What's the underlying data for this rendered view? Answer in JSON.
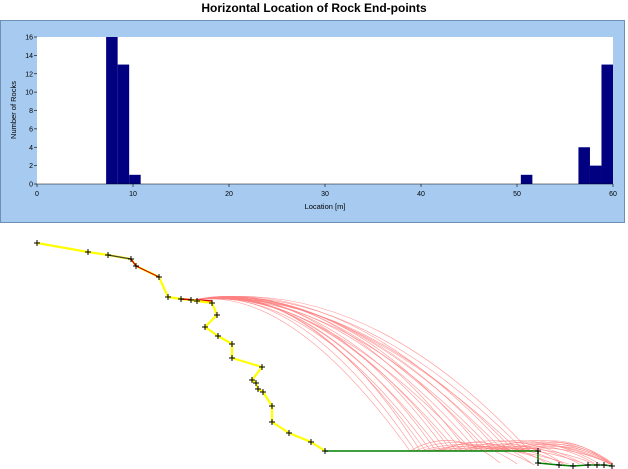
{
  "chart_data": {
    "type": "bar",
    "title": "Horizontal Location of Rock End-points",
    "xlabel": "Location [m]",
    "ylabel": "Number of Rocks",
    "xlim": [
      0,
      60
    ],
    "ylim": [
      0,
      16
    ],
    "x_ticks": [
      0,
      10,
      20,
      30,
      40,
      50,
      60
    ],
    "y_ticks": [
      0,
      2,
      4,
      6,
      8,
      10,
      12,
      14,
      16
    ],
    "bin_width": 1.2,
    "bars": [
      {
        "x0": 7.2,
        "x1": 8.4,
        "value": 16
      },
      {
        "x0": 8.4,
        "x1": 9.6,
        "value": 13
      },
      {
        "x0": 9.6,
        "x1": 10.8,
        "value": 1
      },
      {
        "x0": 50.4,
        "x1": 51.6,
        "value": 1
      },
      {
        "x0": 56.4,
        "x1": 57.6,
        "value": 4
      },
      {
        "x0": 57.6,
        "x1": 58.8,
        "value": 2
      },
      {
        "x0": 58.8,
        "x1": 60.0,
        "value": 13
      }
    ],
    "bar_color": "#000080",
    "grid": false
  },
  "slope": {
    "profile_color": "#ffff00",
    "segment_color_dark": "#404040",
    "segment_color_red": "#cc0000",
    "flat_color": "#008000",
    "trajectory_color": "#ff8080",
    "vertex_marker": "+"
  }
}
